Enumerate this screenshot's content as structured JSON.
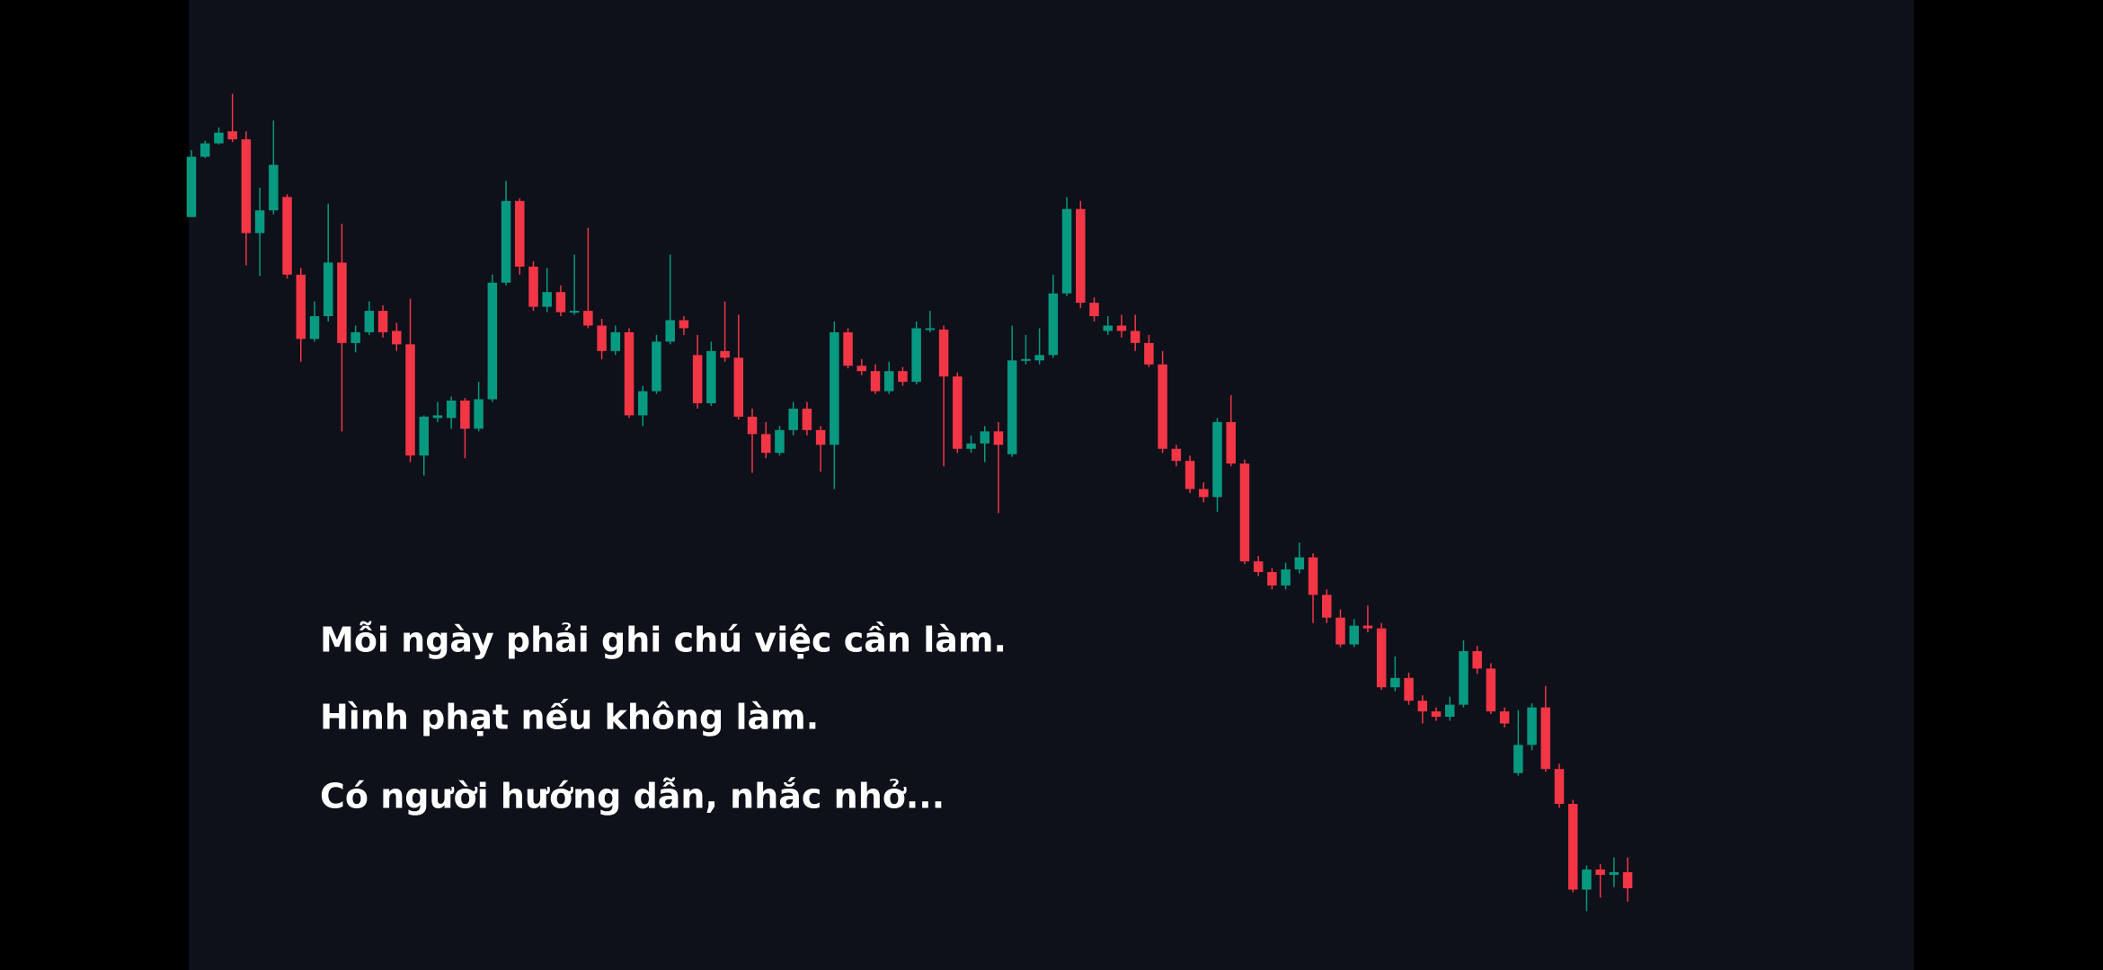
{
  "chart_data": {
    "type": "candlestick",
    "annotations": [
      "Mỗi ngày phải ghi chú việc cần làm.",
      "Hình phạt nếu không làm.",
      "Có người hướng dẫn, nhắc nhở..."
    ],
    "up_color": "#089981",
    "down_color": "#f23645",
    "ylim": [
      0,
      724
    ],
    "open": [
      562,
      607,
      617,
      626,
      620,
      550,
      567,
      577,
      519,
      471,
      488,
      528,
      468,
      476,
      492,
      477,
      467,
      384,
      412,
      412,
      425,
      404,
      426,
      513,
      574,
      525,
      495,
      506,
      491,
      492,
      481,
      462,
      476,
      414,
      432,
      469,
      485,
      459,
      423,
      462,
      457,
      413,
      400,
      386,
      403,
      419,
      403,
      392,
      476,
      451,
      447,
      432,
      447,
      439,
      478,
      478,
      443,
      389,
      393,
      402,
      385,
      455,
      455,
      459,
      505,
      568,
      498,
      477,
      481,
      477,
      468,
      452,
      389,
      380,
      359,
      353,
      409,
      378,
      305,
      297,
      287,
      299,
      308,
      280,
      263,
      243,
      257,
      255,
      211,
      218,
      201,
      193,
      189,
      198,
      238,
      225,
      193,
      147,
      168,
      196,
      150,
      124,
      60,
      75,
      71,
      73
    ],
    "high": [
      612,
      619,
      629,
      654,
      626,
      584,
      634,
      579,
      524,
      499,
      572,
      557,
      481,
      499,
      496,
      483,
      501,
      414,
      424,
      428,
      427,
      439,
      519,
      589,
      576,
      529,
      524,
      511,
      534,
      554,
      486,
      481,
      479,
      436,
      474,
      534,
      488,
      474,
      469,
      499,
      489,
      419,
      409,
      406,
      424,
      424,
      406,
      484,
      479,
      456,
      452,
      454,
      450,
      484,
      492,
      481,
      446,
      399,
      406,
      409,
      481,
      474,
      479,
      519,
      577,
      574,
      502,
      488,
      489,
      489,
      474,
      462,
      392,
      384,
      364,
      412,
      429,
      381,
      309,
      300,
      304,
      319,
      311,
      284,
      269,
      262,
      272,
      259,
      234,
      222,
      205,
      196,
      204,
      246,
      242,
      229,
      196,
      194,
      199,
      212,
      154,
      127,
      78,
      79,
      84,
      84
    ],
    "low": [
      562,
      606,
      616,
      618,
      526,
      518,
      564,
      516,
      454,
      469,
      484,
      402,
      461,
      474,
      472,
      462,
      379,
      369,
      409,
      404,
      382,
      402,
      424,
      511,
      519,
      492,
      491,
      488,
      489,
      479,
      456,
      459,
      412,
      406,
      430,
      467,
      474,
      419,
      421,
      454,
      411,
      371,
      382,
      384,
      399,
      399,
      372,
      359,
      449,
      444,
      430,
      430,
      436,
      437,
      476,
      376,
      386,
      386,
      379,
      341,
      383,
      452,
      452,
      457,
      503,
      494,
      484,
      474,
      472,
      462,
      450,
      386,
      376,
      356,
      349,
      342,
      376,
      303,
      294,
      284,
      284,
      296,
      259,
      259,
      241,
      241,
      252,
      209,
      208,
      198,
      184,
      186,
      186,
      196,
      221,
      191,
      181,
      145,
      164,
      148,
      121,
      58,
      44,
      54,
      62,
      51
    ],
    "close": [
      607,
      617,
      625,
      620,
      550,
      567,
      601,
      519,
      471,
      488,
      528,
      468,
      476,
      492,
      476,
      467,
      384,
      413,
      414,
      425,
      404,
      426,
      513,
      574,
      525,
      495,
      506,
      491,
      492,
      481,
      462,
      476,
      414,
      432,
      469,
      485,
      479,
      423,
      462,
      457,
      413,
      400,
      386,
      403,
      419,
      403,
      392,
      476,
      451,
      447,
      432,
      447,
      439,
      479,
      479,
      443,
      389,
      393,
      402,
      392,
      455,
      456,
      459,
      505,
      568,
      498,
      488,
      481,
      477,
      468,
      452,
      389,
      380,
      359,
      353,
      409,
      378,
      305,
      297,
      287,
      299,
      308,
      280,
      263,
      243,
      257,
      255,
      211,
      218,
      201,
      193,
      189,
      198,
      238,
      225,
      193,
      184,
      168,
      196,
      150,
      124,
      60,
      75,
      71,
      73,
      61
    ]
  }
}
